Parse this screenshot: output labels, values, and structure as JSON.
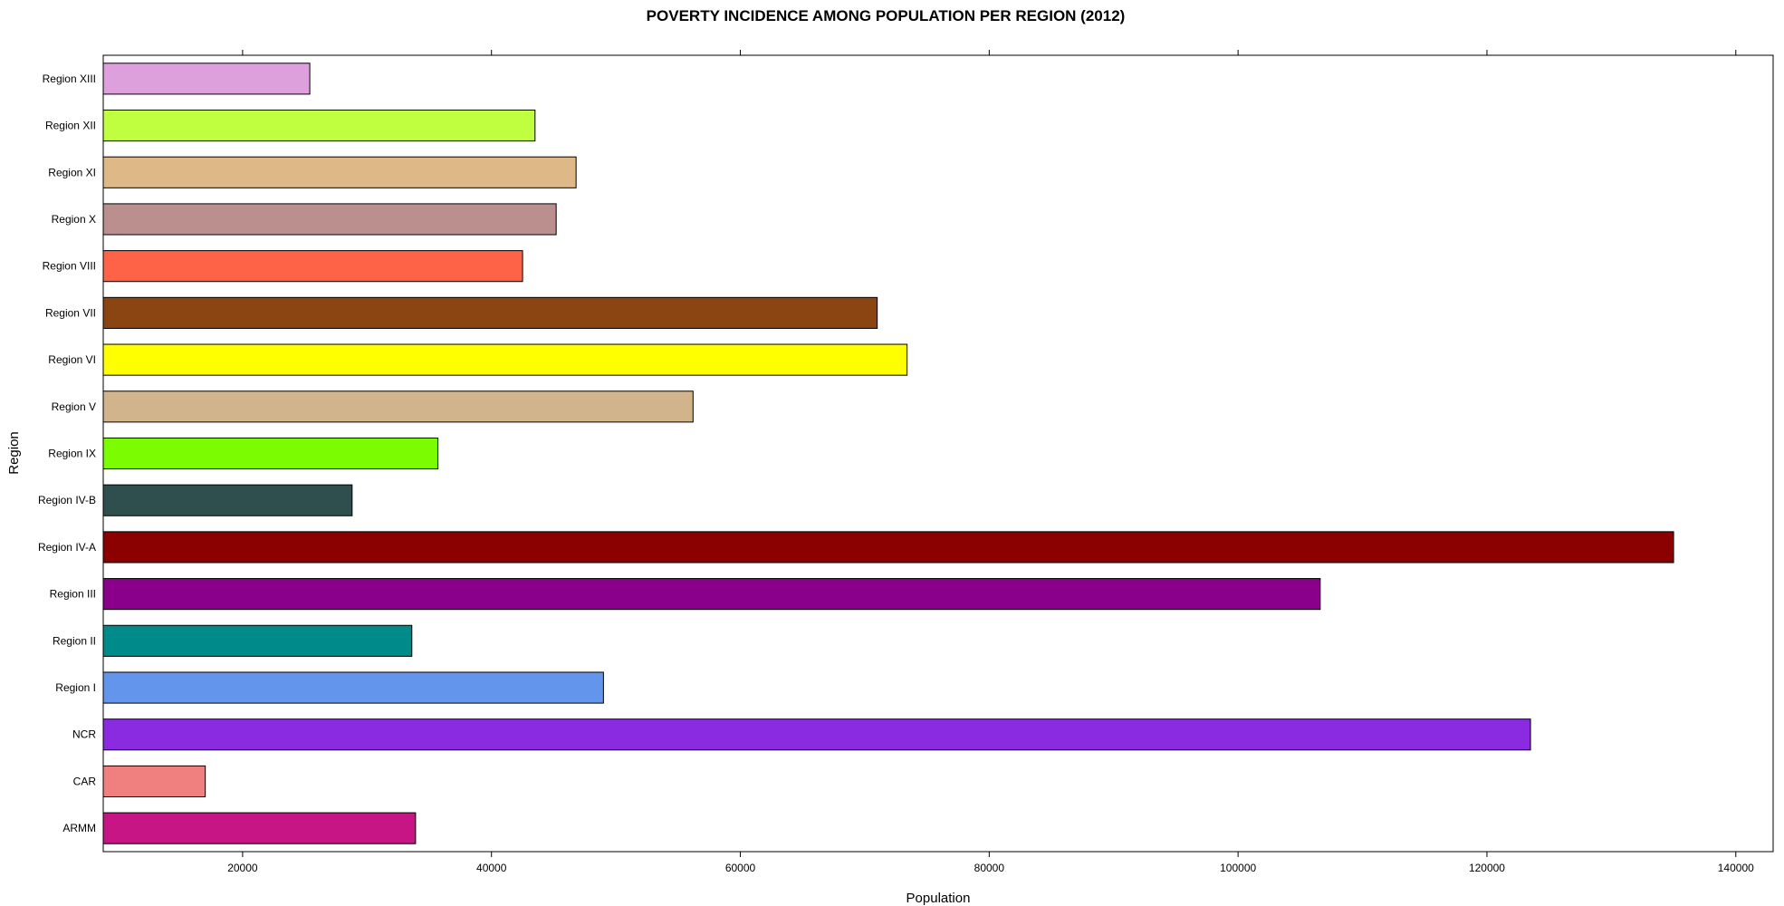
{
  "chart_data": {
    "type": "bar",
    "orientation": "horizontal",
    "title": "POVERTY INCIDENCE AMONG POPULATION PER REGION (2012)",
    "xlabel": "Population",
    "ylabel": "Region",
    "xlim": [
      8800,
      143000
    ],
    "xticks": [
      20000,
      40000,
      60000,
      80000,
      100000,
      120000,
      140000
    ],
    "xtick_labels": [
      "20000",
      "40000",
      "60000",
      "80000",
      "100000",
      "120000",
      "140000"
    ],
    "ticks_on_top_and_bottom": true,
    "grid": false,
    "legend": "none",
    "categories": [
      "ARMM",
      "CAR",
      "NCR",
      "Region I",
      "Region II",
      "Region III",
      "Region IV-A",
      "Region IV-B",
      "Region IX",
      "Region V",
      "Region VI",
      "Region VII",
      "Region VIII",
      "Region X",
      "Region XI",
      "Region XII",
      "Region XIII"
    ],
    "values": [
      33900,
      17000,
      123500,
      49000,
      33600,
      106600,
      135000,
      28800,
      35700,
      56200,
      73400,
      71000,
      42500,
      45200,
      46800,
      43500,
      25400
    ],
    "colors": [
      "#C71585",
      "#F08080",
      "#8A2BE2",
      "#6495ED",
      "#008B8B",
      "#8B008B",
      "#8B0000",
      "#2F4F4F",
      "#7CFC00",
      "#D2B48C",
      "#FFFF00",
      "#8B4513",
      "#FF6347",
      "#BC8F8F",
      "#DEB887",
      "#BFFF40",
      "#DDA0DD"
    ]
  }
}
